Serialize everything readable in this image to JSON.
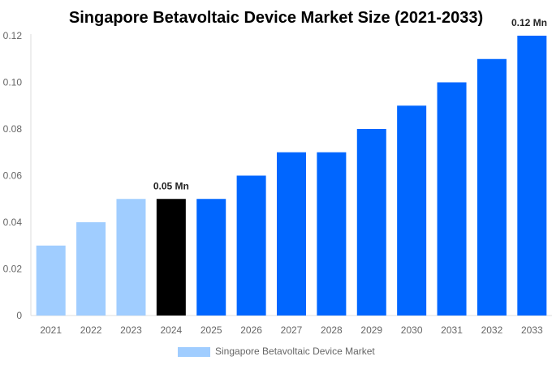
{
  "chart_data": {
    "type": "bar",
    "title": "Singapore Betavoltaic Device Market Size (2021-2033)",
    "categories": [
      "2021",
      "2022",
      "2023",
      "2024",
      "2025",
      "2026",
      "2027",
      "2028",
      "2029",
      "2030",
      "2031",
      "2032",
      "2033"
    ],
    "series": [
      {
        "name": "Singapore Betavoltaic Device Market",
        "values": [
          0.03,
          0.04,
          0.05,
          0.05,
          0.05,
          0.06,
          0.07,
          0.07,
          0.08,
          0.09,
          0.1,
          0.11,
          0.12
        ]
      }
    ],
    "bar_colors": [
      "#a0cdff",
      "#a0cdff",
      "#a0cdff",
      "#000000",
      "#0066ff",
      "#0066ff",
      "#0066ff",
      "#0066ff",
      "#0066ff",
      "#0066ff",
      "#0066ff",
      "#0066ff",
      "#0066ff"
    ],
    "legend_color": "#a0cdff",
    "data_labels": [
      {
        "category": "2024",
        "text": "0.05 Mn"
      },
      {
        "category": "2033",
        "text": "0.12 Mn"
      }
    ],
    "yticks": [
      "0",
      "0.02",
      "0.04",
      "0.06",
      "0.08",
      "0.10",
      "0.12"
    ],
    "ylim": [
      0,
      0.12
    ],
    "xlabel": "",
    "ylabel": "",
    "grid": false,
    "legend_position": "bottom"
  }
}
